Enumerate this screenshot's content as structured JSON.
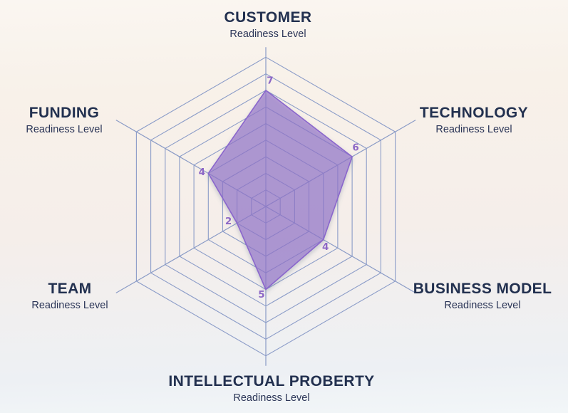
{
  "page": {
    "background_top": "#f8f1e9",
    "background_bottom": "#f2f6f8"
  },
  "chart_data": {
    "type": "radar",
    "title": "",
    "grid": "hexagonal-web",
    "legend": "none",
    "scale": {
      "min": 0,
      "max": 9,
      "rings": 9
    },
    "axes": [
      {
        "label": "CUSTOMER",
        "sublabel": "Readiness Level",
        "value": 7
      },
      {
        "label": "TECHNOLOGY",
        "sublabel": "Readiness Level",
        "value": 6
      },
      {
        "label": "BUSINESS MODEL",
        "sublabel": "Readiness Level",
        "value": 4
      },
      {
        "label": "INTELLECTUAL PROBERTY",
        "sublabel": "Readiness Level",
        "value": 5
      },
      {
        "label": "TEAM",
        "sublabel": "Readiness Level",
        "value": 2
      },
      {
        "label": "FUNDING",
        "sublabel": "Readiness Level",
        "value": 4
      }
    ],
    "series": [
      {
        "name": "Readiness",
        "values": [
          7,
          6,
          4,
          5,
          2,
          4
        ]
      }
    ],
    "colors": {
      "grid_line": "#8b9cc8",
      "axis_line": "#8a9bc6",
      "fill": "#9471cd",
      "fill_opacity": 0.62,
      "stroke": "#8a66cc",
      "value_label": "#8d68c6",
      "title_text": "#22304f",
      "shadow": "#64748b"
    }
  }
}
